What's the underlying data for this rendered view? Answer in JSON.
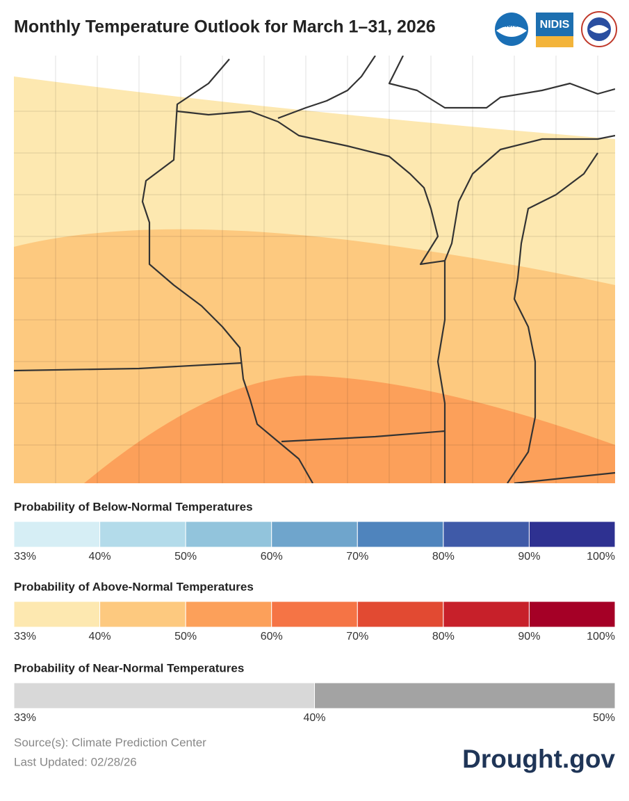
{
  "header": {
    "title": "Monthly Temperature Outlook for March 1–31, 2026",
    "logos": [
      "NOAA",
      "NIDIS"
    ]
  },
  "legends": [
    {
      "title": "Probability of Below-Normal Temperatures",
      "colors": [
        "#d6eef5",
        "#b3dbea",
        "#92c4dc",
        "#6fa5cc",
        "#4f84bd",
        "#3f5aa8",
        "#2e3191"
      ],
      "labels": [
        "33%",
        "40%",
        "50%",
        "60%",
        "70%",
        "80%",
        "90%",
        "100%"
      ]
    },
    {
      "title": "Probability of Above-Normal Temperatures",
      "colors": [
        "#fde8b0",
        "#fdc97f",
        "#fca05a",
        "#f57445",
        "#e24a32",
        "#c7202a",
        "#a50026"
      ],
      "labels": [
        "33%",
        "40%",
        "50%",
        "60%",
        "70%",
        "80%",
        "90%",
        "100%"
      ]
    },
    {
      "title": "Probability of Near-Normal Temperatures",
      "colors": [
        "#d8d8d8",
        "#a3a3a3"
      ],
      "labels": [
        "33%",
        "40%",
        "50%"
      ]
    }
  ],
  "footer": {
    "source": "Source(s): Climate Prediction Center",
    "updated": "Last Updated: 02/28/26",
    "brand": "Drought.gov"
  }
}
